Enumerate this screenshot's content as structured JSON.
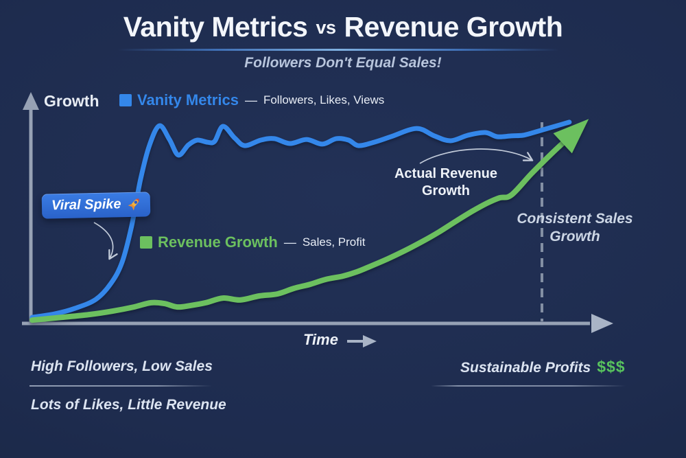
{
  "header": {
    "title_part1": "Vanity Metrics",
    "title_vs": "vs",
    "title_part2": "Revenue Growth",
    "subtitle": "Followers Don't Equal Sales!"
  },
  "legend_separator": "—",
  "annotations": {
    "viral_spike": "Viral Spike",
    "viral_spike_icon": "rocket",
    "actual_revenue": "Actual Revenue Growth",
    "consistent_sales": "Consistent Sales Growth"
  },
  "footer": {
    "left_top": "High Followers, Low Sales",
    "left_bottom": "Lots of Likes, Little Revenue",
    "right_label": "Sustainable Profits",
    "right_dollars": "$$$",
    "dollars_color": "#58c35e"
  },
  "colors": {
    "background": "#1d2b4d",
    "title": "#f3f6fb",
    "subtitle": "#b8c5dc",
    "axis": "#97a2b5",
    "dashed_line": "#95a0b2",
    "annotation_arrow": "#d4dce8",
    "badge": "#2e6fd9"
  },
  "chart_data": {
    "type": "line",
    "title": "Vanity Metrics vs Revenue Growth",
    "subtitle": "Followers Don't Equal Sales!",
    "xlabel": "Time",
    "ylabel": "Growth",
    "x_range": [
      0,
      100
    ],
    "y_range": [
      0,
      100
    ],
    "grid": false,
    "legend_position": "inline-annotations",
    "reference_line": {
      "axis": "x",
      "value": 91.4,
      "style": "dashed",
      "meaning": "start of consistent sales growth"
    },
    "series": [
      {
        "name": "Vanity Metrics",
        "desc": "Followers, Likes, Views",
        "color": "#3487ea",
        "width": 7,
        "end_arrow": false,
        "points": [
          [
            0,
            1.9
          ],
          [
            4.1,
            3.6
          ],
          [
            7.7,
            6.2
          ],
          [
            11.4,
            10.4
          ],
          [
            14.1,
            17.9
          ],
          [
            16.1,
            27.9
          ],
          [
            17.8,
            44.8
          ],
          [
            19.4,
            66.9
          ],
          [
            21,
            83.1
          ],
          [
            22.8,
            92.5
          ],
          [
            24.6,
            86
          ],
          [
            26.2,
            78.6
          ],
          [
            28,
            83.4
          ],
          [
            29.6,
            85.7
          ],
          [
            31.4,
            84.7
          ],
          [
            32.7,
            85.1
          ],
          [
            34.2,
            92.2
          ],
          [
            36.3,
            86.7
          ],
          [
            38.1,
            83.1
          ],
          [
            41,
            85.7
          ],
          [
            43.4,
            86.4
          ],
          [
            46.2,
            84.1
          ],
          [
            49.2,
            86
          ],
          [
            52,
            83.8
          ],
          [
            54.5,
            86.4
          ],
          [
            56.7,
            85.7
          ],
          [
            58.5,
            83.1
          ],
          [
            61.3,
            84.7
          ],
          [
            64.3,
            87.3
          ],
          [
            68.9,
            91.2
          ],
          [
            72.1,
            87.7
          ],
          [
            75,
            85.4
          ],
          [
            78.1,
            88
          ],
          [
            81.2,
            89.3
          ],
          [
            83.4,
            87.3
          ],
          [
            85.9,
            87.7
          ],
          [
            88,
            88
          ],
          [
            89.9,
            89.3
          ],
          [
            92,
            90.9
          ],
          [
            94.1,
            92.5
          ],
          [
            96.3,
            94.2
          ]
        ]
      },
      {
        "name": "Revenue Growth",
        "desc": "Sales, Profit",
        "color": "#6cc05f",
        "width": 8,
        "end_arrow": true,
        "points": [
          [
            0,
            0.6
          ],
          [
            5.3,
            1.9
          ],
          [
            10.2,
            3.2
          ],
          [
            14.5,
            4.9
          ],
          [
            18.2,
            6.8
          ],
          [
            21.3,
            8.8
          ],
          [
            23.7,
            8.4
          ],
          [
            26,
            6.8
          ],
          [
            28.4,
            7.5
          ],
          [
            31.1,
            8.8
          ],
          [
            34.2,
            11
          ],
          [
            37.3,
            10.1
          ],
          [
            40.7,
            12
          ],
          [
            44,
            13
          ],
          [
            46.9,
            15.6
          ],
          [
            49.8,
            17.5
          ],
          [
            52.6,
            19.8
          ],
          [
            55.7,
            21.4
          ],
          [
            58.2,
            23.4
          ],
          [
            60.6,
            26
          ],
          [
            63.7,
            29.5
          ],
          [
            66.8,
            33.4
          ],
          [
            69.9,
            37.7
          ],
          [
            72.9,
            42.2
          ],
          [
            76,
            47.4
          ],
          [
            78.8,
            51.9
          ],
          [
            81.5,
            55.8
          ],
          [
            83.8,
            58.4
          ],
          [
            85.9,
            59.7
          ],
          [
            89.5,
            69.8
          ],
          [
            93.2,
            79.5
          ],
          [
            96.9,
            88.6
          ]
        ]
      }
    ]
  }
}
